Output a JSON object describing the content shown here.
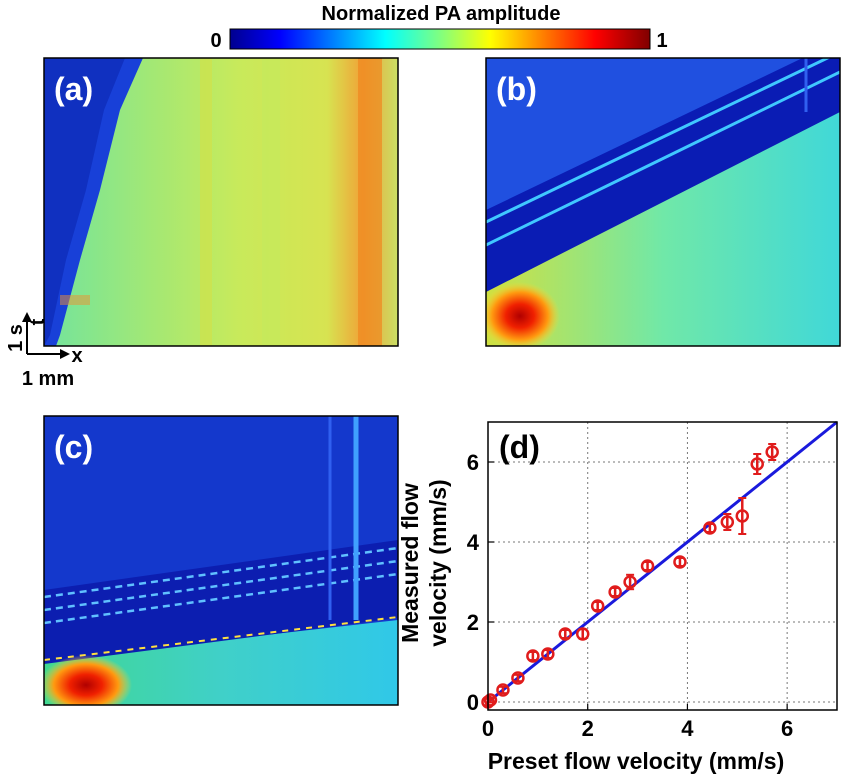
{
  "colorbar": {
    "title": "Normalized PA amplitude",
    "min_label": "0",
    "max_label": "1",
    "colormap": "jet"
  },
  "panels": {
    "a": {
      "label": "(a)"
    },
    "b": {
      "label": "(b)"
    },
    "c": {
      "label": "(c)"
    },
    "d": {
      "label": "(d)"
    }
  },
  "scale_bar": {
    "time_axis": "t",
    "space_axis": "x",
    "time_scale": "1 s",
    "space_scale": "1 mm"
  },
  "chart_data": {
    "type": "scatter",
    "xlabel": "Preset flow velocity (mm/s)",
    "ylabel_line1": "Measured flow",
    "ylabel_line2": "velocity (mm/s)",
    "xlim": [
      0,
      7
    ],
    "ylim": [
      -0.2,
      7
    ],
    "xticks": [
      "0",
      "2",
      "4",
      "6"
    ],
    "yticks": [
      "0",
      "2",
      "4",
      "6"
    ],
    "grid": true,
    "fit_line": {
      "x": [
        0,
        7
      ],
      "y": [
        0,
        7
      ],
      "color": "#1a1adc"
    },
    "points_color": "#e01c1c",
    "points": [
      {
        "x": 0.0,
        "y": 0.0,
        "err": 0.08
      },
      {
        "x": 0.05,
        "y": 0.05,
        "err": 0.06
      },
      {
        "x": 0.3,
        "y": 0.3,
        "err": 0.08
      },
      {
        "x": 0.6,
        "y": 0.6,
        "err": 0.08
      },
      {
        "x": 0.9,
        "y": 1.15,
        "err": 0.1
      },
      {
        "x": 1.2,
        "y": 1.2,
        "err": 0.1
      },
      {
        "x": 1.55,
        "y": 1.7,
        "err": 0.1
      },
      {
        "x": 1.9,
        "y": 1.7,
        "err": 0.12
      },
      {
        "x": 2.2,
        "y": 2.4,
        "err": 0.1
      },
      {
        "x": 2.55,
        "y": 2.75,
        "err": 0.1
      },
      {
        "x": 2.85,
        "y": 3.0,
        "err": 0.18
      },
      {
        "x": 3.2,
        "y": 3.4,
        "err": 0.1
      },
      {
        "x": 3.85,
        "y": 3.5,
        "err": 0.1
      },
      {
        "x": 4.45,
        "y": 4.35,
        "err": 0.1
      },
      {
        "x": 4.8,
        "y": 4.5,
        "err": 0.2
      },
      {
        "x": 5.1,
        "y": 4.65,
        "err": 0.45
      },
      {
        "x": 5.4,
        "y": 5.95,
        "err": 0.25
      },
      {
        "x": 5.7,
        "y": 6.25,
        "err": 0.2
      }
    ]
  }
}
